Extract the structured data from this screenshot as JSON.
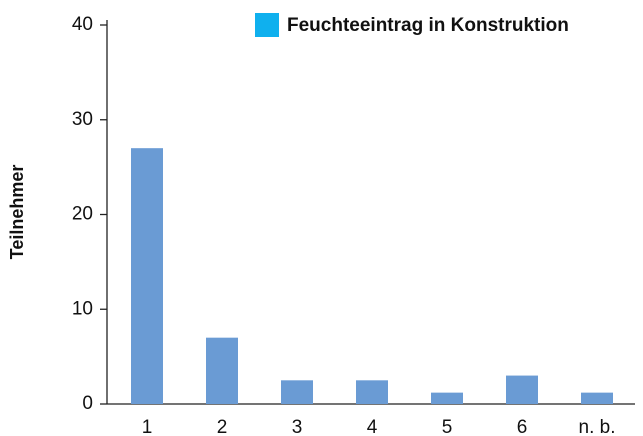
{
  "chart_data": {
    "type": "bar",
    "categories": [
      "1",
      "2",
      "3",
      "4",
      "5",
      "6",
      "n. b."
    ],
    "series": [
      {
        "name": "Feuchteeintrag in Konstruktion",
        "color": "#6a9bd4",
        "legend_color": "#0fb0ee",
        "values": [
          27,
          7,
          2.5,
          2.5,
          1.2,
          3,
          1.2
        ]
      }
    ],
    "y_label": "Teilnehmer",
    "ylim": [
      0,
      40
    ],
    "yticks": [
      0,
      10,
      20,
      30,
      40
    ],
    "grid": false,
    "legend": "top-right"
  }
}
